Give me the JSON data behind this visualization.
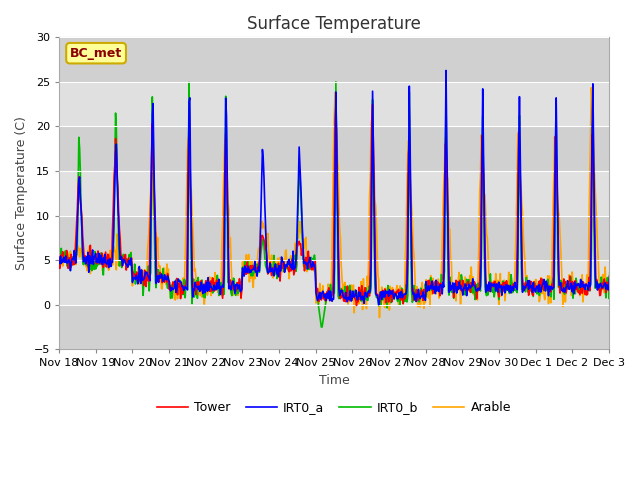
{
  "title": "Surface Temperature",
  "ylabel": "Surface Temperature (C)",
  "xlabel": "Time",
  "ylim": [
    -5,
    30
  ],
  "annotation": "BC_met",
  "legend": [
    "Tower",
    "IRT0_a",
    "IRT0_b",
    "Arable"
  ],
  "colors": {
    "Tower": "#ff0000",
    "IRT0_a": "#0000ff",
    "IRT0_b": "#00bb00",
    "Arable": "#ffa500"
  },
  "title_fontsize": 12,
  "label_fontsize": 9,
  "tick_fontsize": 8,
  "linewidth": 1.2,
  "x_tick_labels": [
    "Nov 18",
    "Nov 19",
    "Nov 20",
    "Nov 21",
    "Nov 22",
    "Nov 23",
    "Nov 24",
    "Nov 25",
    "Nov 26",
    "Nov 27",
    "Nov 28",
    "Nov 29",
    "Nov 30",
    "Dec 1",
    "Dec 2",
    "Dec 3"
  ],
  "x_tick_positions": [
    0,
    24,
    48,
    72,
    96,
    120,
    144,
    168,
    192,
    216,
    240,
    264,
    288,
    312,
    336,
    360
  ],
  "band_dark": "#d8d8d8",
  "band_light": "#e8e8e8",
  "plot_bg": "#e8e8e8"
}
